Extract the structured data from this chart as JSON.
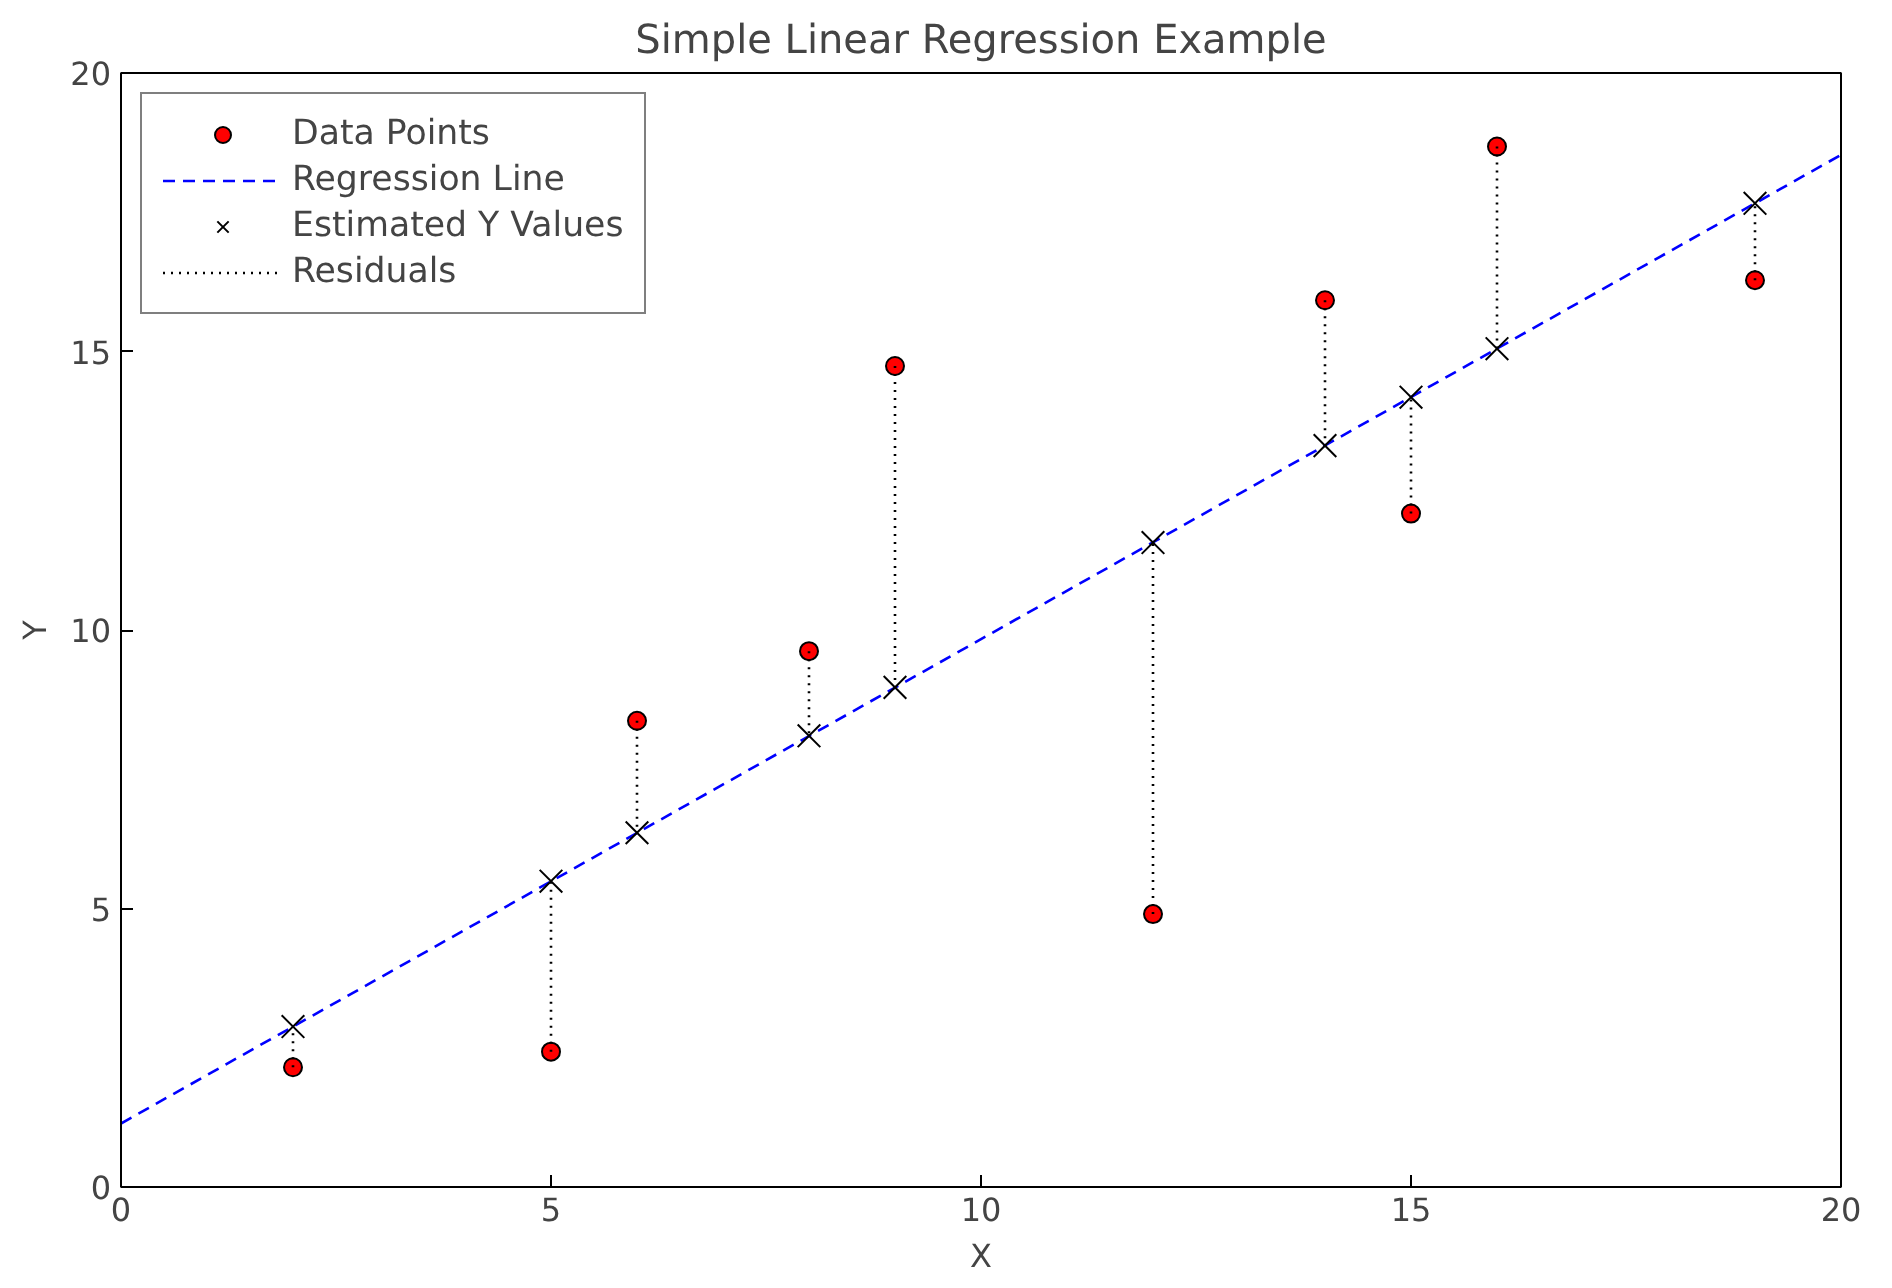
{
  "chart_data": {
    "type": "scatter",
    "title": "Simple Linear Regression Example",
    "xlabel": "X",
    "ylabel": "Y",
    "xlim": [
      0,
      20
    ],
    "ylim": [
      0,
      20
    ],
    "xticks": [
      0,
      5,
      10,
      15,
      20
    ],
    "yticks": [
      0,
      5,
      10,
      15,
      20
    ],
    "grid": false,
    "legend": "top left",
    "series": [
      {
        "name": "Data Points",
        "marker": "circle",
        "color": "#ff0000",
        "x": [
          2,
          5,
          6,
          8,
          9,
          12,
          14,
          15,
          16,
          19
        ],
        "values": [
          2.15,
          2.43,
          8.37,
          9.62,
          14.74,
          4.9,
          15.92,
          12.09,
          18.68,
          16.28
        ]
      },
      {
        "name": "Regression Line",
        "type": "line",
        "line_style": "dashed",
        "marker": "none",
        "color": "#0000ff",
        "x": [
          0,
          20
        ],
        "values": [
          1.14,
          18.53
        ]
      },
      {
        "name": "Estimated Y Values",
        "marker": "cross",
        "color": "#000000",
        "x": [
          2,
          5,
          6,
          8,
          9,
          12,
          14,
          15,
          16,
          19
        ],
        "values": [
          2.88,
          5.49,
          6.36,
          8.1,
          8.97,
          11.57,
          13.31,
          14.18,
          15.05,
          17.66
        ]
      },
      {
        "name": "Residuals",
        "type": "line",
        "marker": "none",
        "line_style": "dotted",
        "color": "#000000",
        "x": [
          2,
          2,
          null,
          5,
          5,
          null,
          6,
          6,
          null,
          8,
          8,
          null,
          9,
          9,
          null,
          12,
          12,
          null,
          14,
          14,
          null,
          15,
          15,
          null,
          16,
          16,
          null,
          19,
          19
        ],
        "values": [
          2.15,
          2.88,
          null,
          2.43,
          5.49,
          null,
          8.37,
          6.36,
          null,
          9.62,
          8.1,
          null,
          14.74,
          8.97,
          null,
          4.9,
          11.57,
          null,
          15.92,
          13.31,
          null,
          12.09,
          14.18,
          null,
          18.68,
          15.05,
          null,
          16.28,
          17.66
        ]
      }
    ]
  }
}
